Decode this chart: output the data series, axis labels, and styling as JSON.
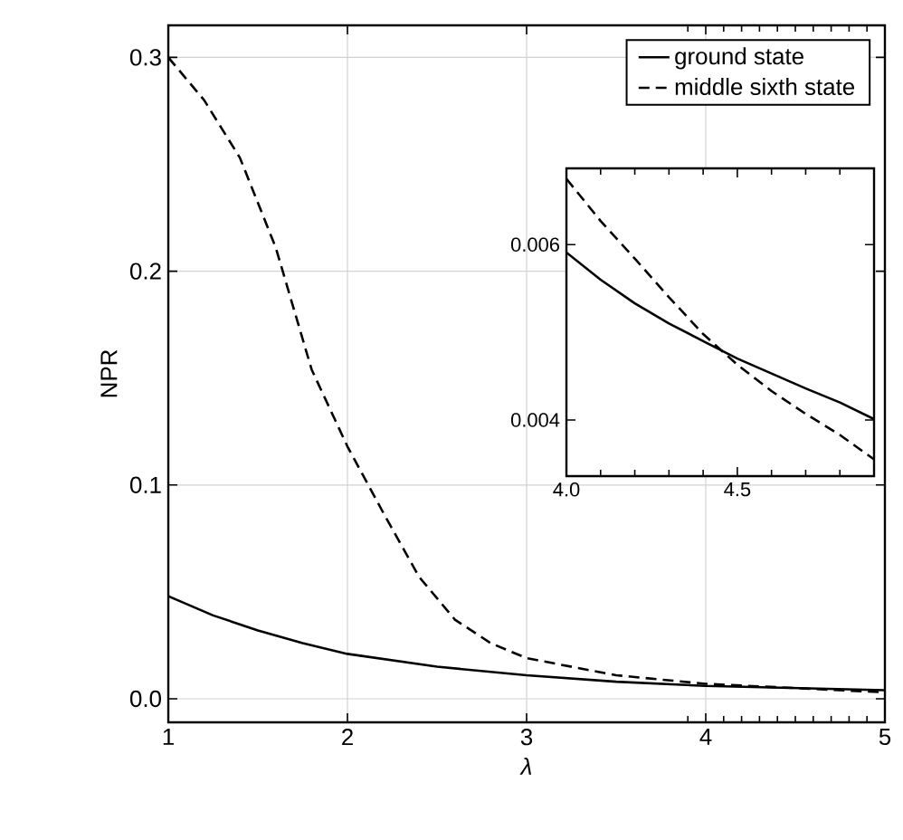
{
  "chart_data": [
    {
      "type": "line",
      "xlabel": "λ",
      "ylabel": "NPR",
      "xlim": [
        1,
        5
      ],
      "ylim": [
        -0.011,
        0.315
      ],
      "xticks": [
        1,
        2,
        3,
        4,
        5,
        {
          "value": 3.9,
          "label": null
        },
        {
          "value": 4.1,
          "label": null
        },
        {
          "value": 4.2,
          "label": null
        },
        {
          "value": 4.3,
          "label": null
        },
        {
          "value": 4.4,
          "label": null
        },
        {
          "value": 4.5,
          "label": null
        },
        {
          "value": 4.6,
          "label": null
        },
        {
          "value": 4.7,
          "label": null
        },
        {
          "value": 4.8,
          "label": null
        },
        {
          "value": 4.9,
          "label": null
        }
      ],
      "yticks": [
        {
          "value": 0,
          "label": "0.0"
        },
        0.1,
        0.2,
        0.3
      ],
      "grid": true,
      "legend": "top right",
      "marker": "none",
      "series": [
        {
          "name": "ground state",
          "color": "#000000",
          "line_style": "solid",
          "x": [
            1,
            1.25,
            1.5,
            1.75,
            2,
            2.5,
            3,
            3.5,
            4,
            4.5,
            5
          ],
          "values": [
            0.048,
            0.039,
            0.032,
            0.026,
            0.021,
            0.015,
            0.011,
            0.008,
            0.006,
            0.005,
            0.004
          ]
        },
        {
          "name": "middle sixth state",
          "color": "#000000",
          "line_style": "dashed",
          "x": [
            1,
            1.2,
            1.4,
            1.6,
            1.8,
            2,
            2.2,
            2.4,
            2.6,
            2.8,
            3,
            3.5,
            4,
            4.5,
            5
          ],
          "values": [
            0.3,
            0.28,
            0.253,
            0.211,
            0.154,
            0.118,
            0.087,
            0.057,
            0.037,
            0.026,
            0.019,
            0.011,
            0.007,
            0.005,
            0.003
          ]
        }
      ]
    },
    {
      "type": "line",
      "xlim": [
        4.0,
        4.9
      ],
      "ylim": [
        0.00336,
        0.00687
      ],
      "xticks": [
        {
          "value": 4.0,
          "label": "4.0"
        },
        4.5,
        {
          "value": 4.1,
          "label": null
        },
        {
          "value": 4.2,
          "label": null
        },
        {
          "value": 4.3,
          "label": null
        },
        {
          "value": 4.4,
          "label": null
        },
        {
          "value": 4.6,
          "label": null
        },
        {
          "value": 4.7,
          "label": null
        },
        {
          "value": 4.8,
          "label": null
        }
      ],
      "yticks": [
        0.004,
        0.006
      ],
      "grid": false,
      "legend": false,
      "marker": "none",
      "series": [
        {
          "color": "#000000",
          "line_style": "solid",
          "x": [
            4.0,
            4.1,
            4.2,
            4.3,
            4.4,
            4.5,
            4.6,
            4.7,
            4.8,
            4.9
          ],
          "values": [
            0.00591,
            0.0056,
            0.00533,
            0.0051,
            0.0049,
            0.0047,
            0.00453,
            0.00436,
            0.0042,
            0.00401
          ]
        },
        {
          "color": "#000000",
          "line_style": "dashed",
          "x": [
            4.0,
            4.1,
            4.2,
            4.3,
            4.4,
            4.5,
            4.6,
            4.7,
            4.8,
            4.9
          ],
          "values": [
            0.00675,
            0.00627,
            0.00584,
            0.0054,
            0.00498,
            0.00463,
            0.00433,
            0.00407,
            0.00383,
            0.00355
          ]
        }
      ]
    }
  ]
}
